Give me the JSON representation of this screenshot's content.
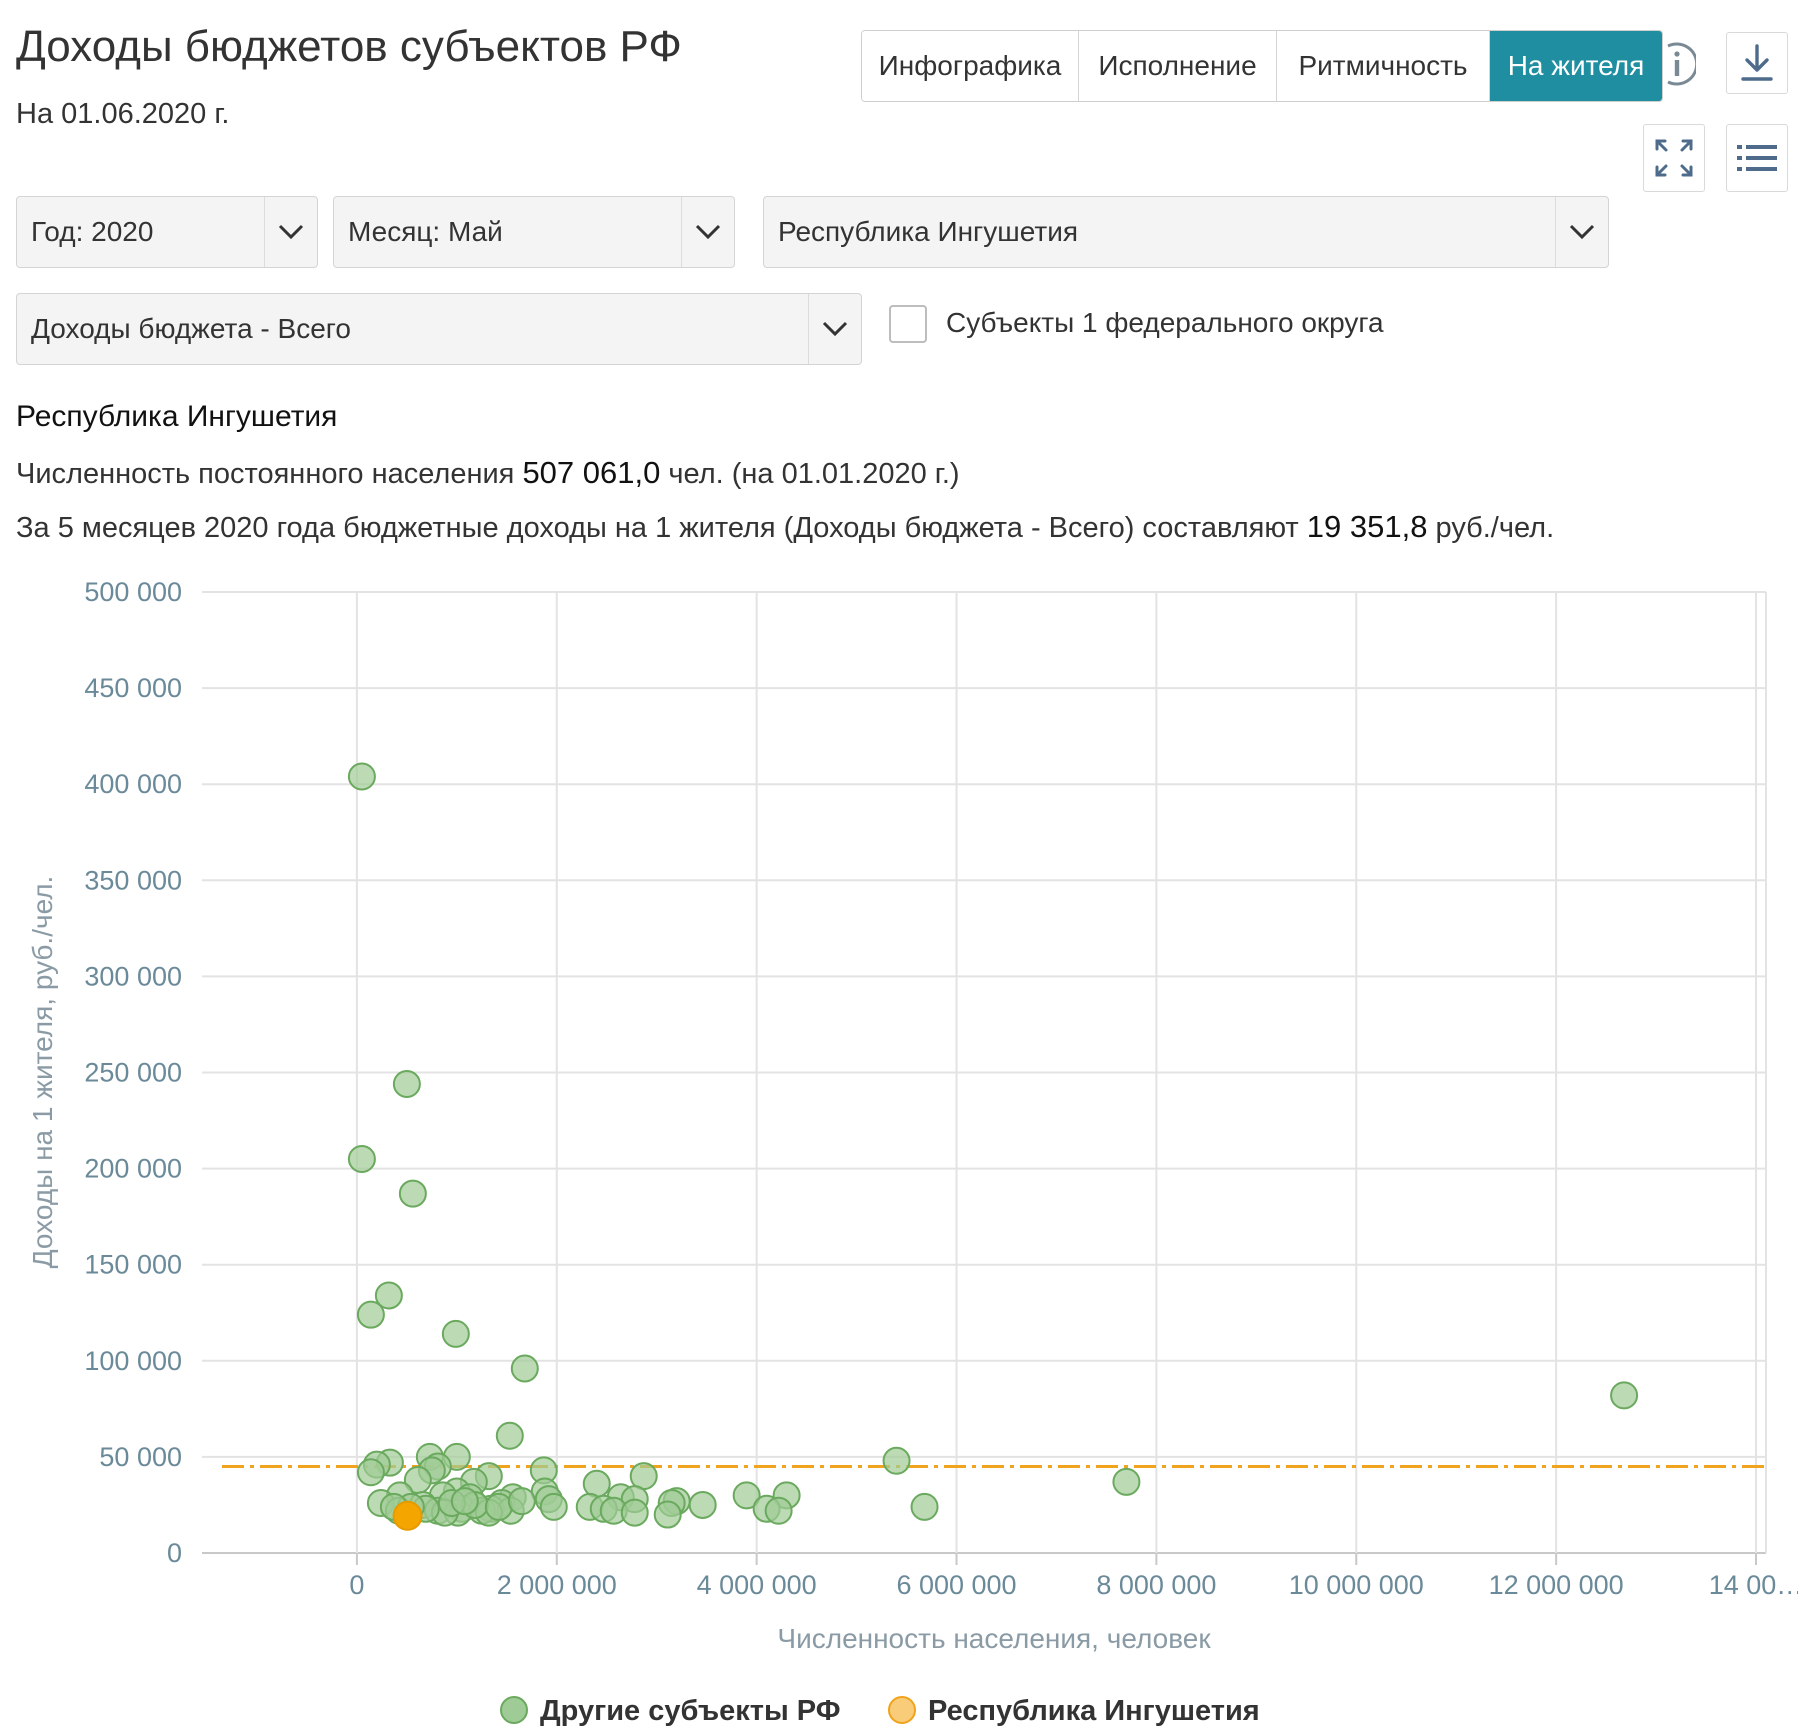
{
  "header": {
    "title": "Доходы бюджетов субъектов РФ",
    "date": "На 01.06.2020 г."
  },
  "tabs": [
    {
      "label": "Инфографика",
      "active": false
    },
    {
      "label": "Исполнение",
      "active": false
    },
    {
      "label": "Ритмичность",
      "active": false
    },
    {
      "label": "На жителя",
      "active": true
    }
  ],
  "toolbar": {
    "info_icon": "info-icon",
    "download_icon": "download-icon",
    "fullscreen_icon": "fullscreen-icon",
    "menu_icon": "list-menu-icon"
  },
  "filters": {
    "year": "Год: 2020",
    "month": "Месяц: Май",
    "region": "Республика Ингушетия",
    "indicator": "Доходы бюджета - Всего",
    "federal_district_checkbox": {
      "label": "Субъекты 1 федерального округа",
      "checked": false
    }
  },
  "summary": {
    "region_name": "Республика Ингушетия",
    "population_prefix": "Численность постоянного населения",
    "population_value": "507 061,0",
    "population_suffix": "чел. (на 01.01.2020 г.)",
    "income_prefix": "За 5 месяцев 2020 года бюджетные доходы на 1 жителя (Доходы бюджета - Всего) составляют",
    "income_value": "19 351,8",
    "income_suffix": "руб./чел."
  },
  "colors": {
    "accent": "#1f8ea0",
    "other_points": "#9fcc96",
    "other_points_stroke": "#6aa95e",
    "selected_point": "#f5a500",
    "average_line": "#f0a31c"
  },
  "chart_data": {
    "type": "scatter",
    "xlabel": "Численность населения, человек",
    "ylabel": "Доходы на 1 жителя, руб./чел.",
    "xlim": [
      -1550000,
      14100000
    ],
    "ylim": [
      0,
      500000
    ],
    "x_ticks": [
      0,
      2000000,
      4000000,
      6000000,
      8000000,
      10000000,
      12000000,
      14000000
    ],
    "x_tick_labels": [
      "0",
      "2 000 000",
      "4 000 000",
      "6 000 000",
      "8 000 000",
      "10 000 000",
      "12 000 000",
      "14 00…"
    ],
    "y_ticks": [
      0,
      50000,
      100000,
      150000,
      200000,
      250000,
      300000,
      350000,
      400000,
      450000,
      500000
    ],
    "y_tick_labels": [
      "0",
      "50 000",
      "100 000",
      "150 000",
      "200 000",
      "250 000",
      "300 000",
      "350 000",
      "400 000",
      "450 000",
      "500 000"
    ],
    "grid": true,
    "average_line": 45000,
    "legend_position": "bottom",
    "series": [
      {
        "name": "Другие субъекты РФ",
        "points": [
          [
            50000,
            404000
          ],
          [
            500000,
            244000
          ],
          [
            50000,
            205000
          ],
          [
            560000,
            187000
          ],
          [
            320000,
            134000
          ],
          [
            140000,
            124000
          ],
          [
            990000,
            114000
          ],
          [
            1680000,
            96000
          ],
          [
            12680000,
            82000
          ],
          [
            1530000,
            61000
          ],
          [
            5400000,
            48000
          ],
          [
            1000000,
            50000
          ],
          [
            730000,
            50000
          ],
          [
            330000,
            47000
          ],
          [
            200000,
            46000
          ],
          [
            810000,
            45000
          ],
          [
            750000,
            43000
          ],
          [
            140000,
            42000
          ],
          [
            1870000,
            43000
          ],
          [
            1320000,
            40000
          ],
          [
            2870000,
            40000
          ],
          [
            610000,
            38000
          ],
          [
            1170000,
            37000
          ],
          [
            2400000,
            36000
          ],
          [
            7700000,
            37000
          ],
          [
            3900000,
            30000
          ],
          [
            4300000,
            30000
          ],
          [
            2640000,
            29000
          ],
          [
            1880000,
            32000
          ],
          [
            1000000,
            32000
          ],
          [
            860000,
            30000
          ],
          [
            430000,
            30000
          ],
          [
            1560000,
            29000
          ],
          [
            1130000,
            29000
          ],
          [
            1920000,
            28000
          ],
          [
            3200000,
            27000
          ],
          [
            2780000,
            28000
          ],
          [
            3150000,
            26000
          ],
          [
            1450000,
            26000
          ],
          [
            240000,
            26000
          ],
          [
            660000,
            25000
          ],
          [
            3460000,
            25000
          ],
          [
            2330000,
            24000
          ],
          [
            5680000,
            24000
          ],
          [
            1970000,
            24000
          ],
          [
            4100000,
            23000
          ],
          [
            1340000,
            23000
          ],
          [
            2470000,
            23000
          ],
          [
            1050000,
            23000
          ],
          [
            810000,
            22000
          ],
          [
            2570000,
            22000
          ],
          [
            1540000,
            22000
          ],
          [
            4220000,
            22000
          ],
          [
            1250000,
            22000
          ],
          [
            420000,
            22000
          ],
          [
            1010000,
            21000
          ],
          [
            1320000,
            21000
          ],
          [
            2780000,
            21000
          ],
          [
            880000,
            21000
          ],
          [
            3110000,
            20000
          ],
          [
            690000,
            23000
          ],
          [
            540000,
            24000
          ],
          [
            1180000,
            25000
          ],
          [
            1420000,
            24000
          ],
          [
            950000,
            26000
          ],
          [
            1080000,
            27000
          ],
          [
            1650000,
            27000
          ],
          [
            370000,
            24000
          ]
        ]
      },
      {
        "name": "Республика Ингушетия",
        "points": [
          [
            507061,
            19351.8
          ]
        ]
      }
    ]
  }
}
